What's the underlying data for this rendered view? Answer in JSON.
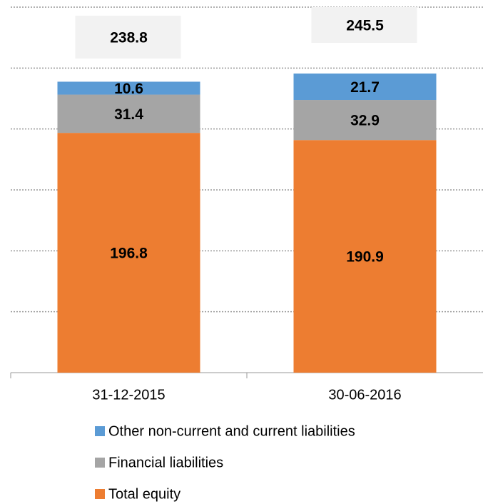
{
  "chart_data": {
    "type": "stacked_bar",
    "categories": [
      "31-12-2015",
      "30-06-2016"
    ],
    "series": [
      {
        "name": "Total equity",
        "color": "#ed7d31",
        "values": [
          196.8,
          190.9
        ]
      },
      {
        "name": "Financial liabilities",
        "color": "#a5a5a5",
        "values": [
          31.4,
          32.9
        ]
      },
      {
        "name": "Other non-current and current liabilities",
        "color": "#5b9bd5",
        "values": [
          10.6,
          21.7
        ]
      }
    ],
    "totals": [
      238.8,
      245.5
    ],
    "ylim": [
      0,
      300
    ],
    "yticks": [
      0,
      50,
      100,
      150,
      200,
      250,
      300
    ],
    "grid": true
  }
}
